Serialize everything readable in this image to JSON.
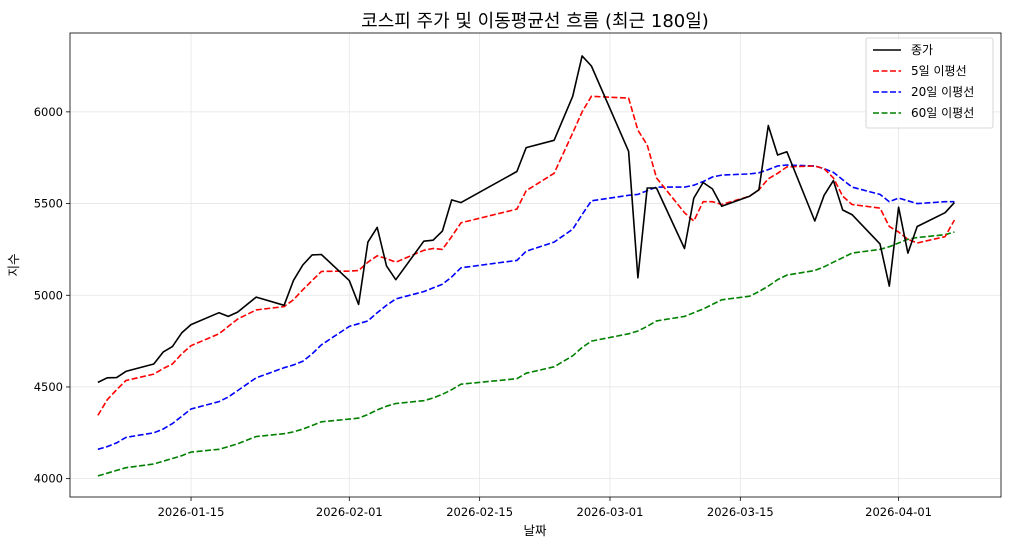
{
  "chart_data": {
    "type": "line",
    "title": "코스피 주가 및 이동평균선 흐름 (최근 180일)",
    "xlabel": "날짜",
    "ylabel": "지수",
    "ylim": [
      3900,
      6430
    ],
    "xlim": [
      "2026-01-02",
      "2026-04-12"
    ],
    "x_ticks": [
      "2026-01-15",
      "2026-02-01",
      "2026-02-15",
      "2026-03-01",
      "2026-03-15",
      "2026-04-01"
    ],
    "y_ticks": [
      4000,
      4500,
      5000,
      5500,
      6000
    ],
    "grid": true,
    "legend_position": "top-right",
    "series": [
      {
        "name": "종가",
        "color": "#000000",
        "dash": "solid",
        "points": [
          [
            "2026-01-05",
            4525
          ],
          [
            "2026-01-06",
            4550
          ],
          [
            "2026-01-07",
            4551
          ],
          [
            "2026-01-08",
            4585
          ],
          [
            "2026-01-11",
            4625
          ],
          [
            "2026-01-12",
            4690
          ],
          [
            "2026-01-13",
            4720
          ],
          [
            "2026-01-14",
            4795
          ],
          [
            "2026-01-15",
            4840
          ],
          [
            "2026-01-18",
            4905
          ],
          [
            "2026-01-19",
            4885
          ],
          [
            "2026-01-20",
            4908
          ],
          [
            "2026-01-22",
            4990
          ],
          [
            "2026-01-25",
            4945
          ],
          [
            "2026-01-26",
            5080
          ],
          [
            "2026-01-27",
            5165
          ],
          [
            "2026-01-28",
            5220
          ],
          [
            "2026-01-29",
            5222
          ],
          [
            "2026-02-01",
            5080
          ],
          [
            "2026-02-02",
            4950
          ],
          [
            "2026-02-03",
            5290
          ],
          [
            "2026-02-04",
            5370
          ],
          [
            "2026-02-05",
            5160
          ],
          [
            "2026-02-06",
            5085
          ],
          [
            "2026-02-09",
            5295
          ],
          [
            "2026-02-10",
            5300
          ],
          [
            "2026-02-11",
            5350
          ],
          [
            "2026-02-12",
            5520
          ],
          [
            "2026-02-13",
            5505
          ],
          [
            "2026-02-19",
            5675
          ],
          [
            "2026-02-20",
            5805
          ],
          [
            "2026-02-23",
            5845
          ],
          [
            "2026-02-25",
            6085
          ],
          [
            "2026-02-26",
            6305
          ],
          [
            "2026-02-27",
            6250
          ],
          [
            "2026-03-03",
            5785
          ],
          [
            "2026-03-04",
            5095
          ],
          [
            "2026-03-05",
            5585
          ],
          [
            "2026-03-06",
            5585
          ],
          [
            "2026-03-09",
            5255
          ],
          [
            "2026-03-10",
            5530
          ],
          [
            "2026-03-11",
            5615
          ],
          [
            "2026-03-12",
            5580
          ],
          [
            "2026-03-13",
            5485
          ],
          [
            "2026-03-16",
            5540
          ],
          [
            "2026-03-17",
            5575
          ],
          [
            "2026-03-18",
            5925
          ],
          [
            "2026-03-19",
            5765
          ],
          [
            "2026-03-20",
            5782
          ],
          [
            "2026-03-23",
            5405
          ],
          [
            "2026-03-24",
            5545
          ],
          [
            "2026-03-25",
            5625
          ],
          [
            "2026-03-26",
            5465
          ],
          [
            "2026-03-27",
            5440
          ],
          [
            "2026-03-30",
            5280
          ],
          [
            "2026-03-31",
            5050
          ],
          [
            "2026-04-01",
            5480
          ],
          [
            "2026-04-02",
            5230
          ],
          [
            "2026-04-03",
            5375
          ],
          [
            "2026-04-06",
            5450
          ],
          [
            "2026-04-07",
            5505
          ]
        ]
      },
      {
        "name": "5일 이평선",
        "color": "#ff0000",
        "dash": "dashed",
        "points": [
          [
            "2026-01-05",
            4345
          ],
          [
            "2026-01-06",
            4430
          ],
          [
            "2026-01-07",
            4485
          ],
          [
            "2026-01-08",
            4535
          ],
          [
            "2026-01-11",
            4570
          ],
          [
            "2026-01-12",
            4600
          ],
          [
            "2026-01-13",
            4625
          ],
          [
            "2026-01-14",
            4680
          ],
          [
            "2026-01-15",
            4725
          ],
          [
            "2026-01-18",
            4790
          ],
          [
            "2026-01-19",
            4830
          ],
          [
            "2026-01-20",
            4870
          ],
          [
            "2026-01-22",
            4920
          ],
          [
            "2026-01-25",
            4938
          ],
          [
            "2026-01-26",
            4975
          ],
          [
            "2026-01-27",
            5030
          ],
          [
            "2026-01-28",
            5080
          ],
          [
            "2026-01-29",
            5130
          ],
          [
            "2026-02-01",
            5132
          ],
          [
            "2026-02-02",
            5135
          ],
          [
            "2026-02-03",
            5180
          ],
          [
            "2026-02-04",
            5215
          ],
          [
            "2026-02-05",
            5200
          ],
          [
            "2026-02-06",
            5180
          ],
          [
            "2026-02-09",
            5245
          ],
          [
            "2026-02-10",
            5255
          ],
          [
            "2026-02-11",
            5250
          ],
          [
            "2026-02-12",
            5320
          ],
          [
            "2026-02-13",
            5395
          ],
          [
            "2026-02-19",
            5470
          ],
          [
            "2026-02-20",
            5570
          ],
          [
            "2026-02-23",
            5665
          ],
          [
            "2026-02-25",
            5885
          ],
          [
            "2026-02-26",
            6000
          ],
          [
            "2026-02-27",
            6085
          ],
          [
            "2026-03-03",
            6075
          ],
          [
            "2026-03-04",
            5900
          ],
          [
            "2026-03-05",
            5820
          ],
          [
            "2026-03-06",
            5640
          ],
          [
            "2026-03-09",
            5450
          ],
          [
            "2026-03-10",
            5405
          ],
          [
            "2026-03-11",
            5510
          ],
          [
            "2026-03-12",
            5510
          ],
          [
            "2026-03-13",
            5495
          ],
          [
            "2026-03-16",
            5540
          ],
          [
            "2026-03-17",
            5575
          ],
          [
            "2026-03-18",
            5635
          ],
          [
            "2026-03-19",
            5665
          ],
          [
            "2026-03-20",
            5700
          ],
          [
            "2026-03-23",
            5705
          ],
          [
            "2026-03-24",
            5690
          ],
          [
            "2026-03-25",
            5640
          ],
          [
            "2026-03-26",
            5540
          ],
          [
            "2026-03-27",
            5495
          ],
          [
            "2026-03-30",
            5475
          ],
          [
            "2026-03-31",
            5375
          ],
          [
            "2026-04-01",
            5345
          ],
          [
            "2026-04-02",
            5305
          ],
          [
            "2026-04-03",
            5285
          ],
          [
            "2026-04-06",
            5320
          ],
          [
            "2026-04-07",
            5410
          ]
        ]
      },
      {
        "name": "20일 이평선",
        "color": "#0000ff",
        "dash": "dashed",
        "points": [
          [
            "2026-01-05",
            4160
          ],
          [
            "2026-01-06",
            4175
          ],
          [
            "2026-01-07",
            4195
          ],
          [
            "2026-01-08",
            4225
          ],
          [
            "2026-01-11",
            4250
          ],
          [
            "2026-01-12",
            4270
          ],
          [
            "2026-01-13",
            4300
          ],
          [
            "2026-01-14",
            4340
          ],
          [
            "2026-01-15",
            4380
          ],
          [
            "2026-01-18",
            4420
          ],
          [
            "2026-01-19",
            4445
          ],
          [
            "2026-01-20",
            4480
          ],
          [
            "2026-01-22",
            4550
          ],
          [
            "2026-01-25",
            4605
          ],
          [
            "2026-01-26",
            4620
          ],
          [
            "2026-01-27",
            4640
          ],
          [
            "2026-01-28",
            4680
          ],
          [
            "2026-01-29",
            4730
          ],
          [
            "2026-02-01",
            4830
          ],
          [
            "2026-02-02",
            4845
          ],
          [
            "2026-02-03",
            4860
          ],
          [
            "2026-02-04",
            4905
          ],
          [
            "2026-02-05",
            4945
          ],
          [
            "2026-02-06",
            4980
          ],
          [
            "2026-02-09",
            5020
          ],
          [
            "2026-02-10",
            5040
          ],
          [
            "2026-02-11",
            5060
          ],
          [
            "2026-02-12",
            5100
          ],
          [
            "2026-02-13",
            5150
          ],
          [
            "2026-02-19",
            5190
          ],
          [
            "2026-02-20",
            5240
          ],
          [
            "2026-02-23",
            5290
          ],
          [
            "2026-02-25",
            5360
          ],
          [
            "2026-02-26",
            5440
          ],
          [
            "2026-02-27",
            5515
          ],
          [
            "2026-03-03",
            5545
          ],
          [
            "2026-03-04",
            5550
          ],
          [
            "2026-03-05",
            5570
          ],
          [
            "2026-03-06",
            5590
          ],
          [
            "2026-03-09",
            5590
          ],
          [
            "2026-03-10",
            5600
          ],
          [
            "2026-03-11",
            5620
          ],
          [
            "2026-03-12",
            5645
          ],
          [
            "2026-03-13",
            5655
          ],
          [
            "2026-03-16",
            5662
          ],
          [
            "2026-03-17",
            5668
          ],
          [
            "2026-03-18",
            5685
          ],
          [
            "2026-03-19",
            5705
          ],
          [
            "2026-03-20",
            5710
          ],
          [
            "2026-03-23",
            5705
          ],
          [
            "2026-03-24",
            5690
          ],
          [
            "2026-03-25",
            5670
          ],
          [
            "2026-03-26",
            5630
          ],
          [
            "2026-03-27",
            5590
          ],
          [
            "2026-03-30",
            5550
          ],
          [
            "2026-03-31",
            5510
          ],
          [
            "2026-04-01",
            5530
          ],
          [
            "2026-04-02",
            5515
          ],
          [
            "2026-04-03",
            5500
          ],
          [
            "2026-04-06",
            5510
          ],
          [
            "2026-04-07",
            5510
          ]
        ]
      },
      {
        "name": "60일 이평선",
        "color": "#008000",
        "dash": "dashed",
        "points": [
          [
            "2026-01-05",
            4015
          ],
          [
            "2026-01-06",
            4030
          ],
          [
            "2026-01-07",
            4045
          ],
          [
            "2026-01-08",
            4060
          ],
          [
            "2026-01-11",
            4080
          ],
          [
            "2026-01-12",
            4095
          ],
          [
            "2026-01-13",
            4110
          ],
          [
            "2026-01-14",
            4125
          ],
          [
            "2026-01-15",
            4145
          ],
          [
            "2026-01-18",
            4160
          ],
          [
            "2026-01-19",
            4175
          ],
          [
            "2026-01-20",
            4190
          ],
          [
            "2026-01-22",
            4230
          ],
          [
            "2026-01-25",
            4245
          ],
          [
            "2026-01-26",
            4255
          ],
          [
            "2026-01-27",
            4270
          ],
          [
            "2026-01-28",
            4290
          ],
          [
            "2026-01-29",
            4310
          ],
          [
            "2026-02-01",
            4325
          ],
          [
            "2026-02-02",
            4330
          ],
          [
            "2026-02-03",
            4350
          ],
          [
            "2026-02-04",
            4375
          ],
          [
            "2026-02-05",
            4395
          ],
          [
            "2026-02-06",
            4410
          ],
          [
            "2026-02-09",
            4425
          ],
          [
            "2026-02-10",
            4440
          ],
          [
            "2026-02-11",
            4460
          ],
          [
            "2026-02-12",
            4485
          ],
          [
            "2026-02-13",
            4515
          ],
          [
            "2026-02-19",
            4545
          ],
          [
            "2026-02-20",
            4575
          ],
          [
            "2026-02-23",
            4610
          ],
          [
            "2026-02-25",
            4670
          ],
          [
            "2026-02-26",
            4715
          ],
          [
            "2026-02-27",
            4750
          ],
          [
            "2026-03-03",
            4790
          ],
          [
            "2026-03-04",
            4805
          ],
          [
            "2026-03-05",
            4830
          ],
          [
            "2026-03-06",
            4860
          ],
          [
            "2026-03-09",
            4885
          ],
          [
            "2026-03-10",
            4905
          ],
          [
            "2026-03-11",
            4925
          ],
          [
            "2026-03-12",
            4950
          ],
          [
            "2026-03-13",
            4975
          ],
          [
            "2026-03-16",
            4995
          ],
          [
            "2026-03-17",
            5020
          ],
          [
            "2026-03-18",
            5050
          ],
          [
            "2026-03-19",
            5085
          ],
          [
            "2026-03-20",
            5110
          ],
          [
            "2026-03-23",
            5135
          ],
          [
            "2026-03-24",
            5155
          ],
          [
            "2026-03-25",
            5180
          ],
          [
            "2026-03-26",
            5205
          ],
          [
            "2026-03-27",
            5230
          ],
          [
            "2026-03-30",
            5250
          ],
          [
            "2026-03-31",
            5265
          ],
          [
            "2026-04-01",
            5285
          ],
          [
            "2026-04-02",
            5305
          ],
          [
            "2026-04-03",
            5315
          ],
          [
            "2026-04-06",
            5330
          ],
          [
            "2026-04-07",
            5345
          ]
        ]
      }
    ]
  }
}
